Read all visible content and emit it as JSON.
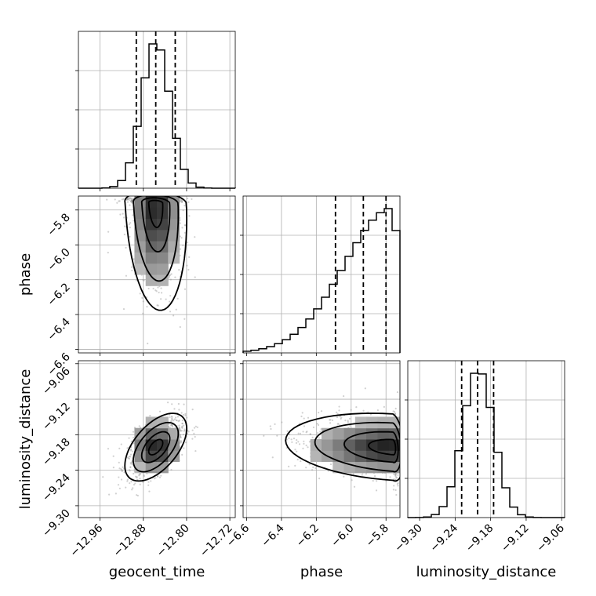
{
  "chart_data": {
    "type": "corner",
    "parameters": [
      "geocent_time",
      "phase",
      "luminosity_distance"
    ],
    "axes": {
      "geocent_time": {
        "label": "geocent_time",
        "range": [
          -13.0,
          -12.71
        ],
        "ticks": [
          -12.96,
          -12.88,
          -12.8,
          -12.72
        ],
        "tick_labels": [
          "−12.96",
          "−12.88",
          "−12.80",
          "−12.72"
        ],
        "quantiles": [
          -12.893,
          -12.857,
          -12.821
        ],
        "peak": -12.857,
        "sigma_low": 0.026,
        "sigma_high": 0.026
      },
      "phase": {
        "label": "phase",
        "range": [
          -6.62,
          -5.72
        ],
        "ticks": [
          -6.6,
          -6.4,
          -6.2,
          -6.0,
          -5.8
        ],
        "tick_labels": [
          "−6.6",
          "−6.4",
          "−6.2",
          "−6.0",
          "−5.8"
        ],
        "quantiles": [
          -6.09,
          -5.93,
          -5.8
        ],
        "peak": -5.76,
        "sigma_low": 0.28,
        "sigma_high": 0.03
      },
      "luminosity_distance": {
        "label": "luminosity_distance",
        "range": [
          -9.32,
          -9.055
        ],
        "ticks": [
          -9.3,
          -9.24,
          -9.18,
          -9.12,
          -9.06
        ],
        "tick_labels": [
          "−9.30",
          "−9.24",
          "−9.18",
          "−9.12",
          "−9.06"
        ],
        "quantiles": [
          -9.229,
          -9.202,
          -9.175
        ],
        "peak": -9.201,
        "sigma_low": 0.026,
        "sigma_high": 0.026
      }
    },
    "contour_levels": [
      0.393,
      0.865,
      0.989
    ],
    "quantile_levels": [
      0.16,
      0.5,
      0.84
    ],
    "grid": true
  }
}
